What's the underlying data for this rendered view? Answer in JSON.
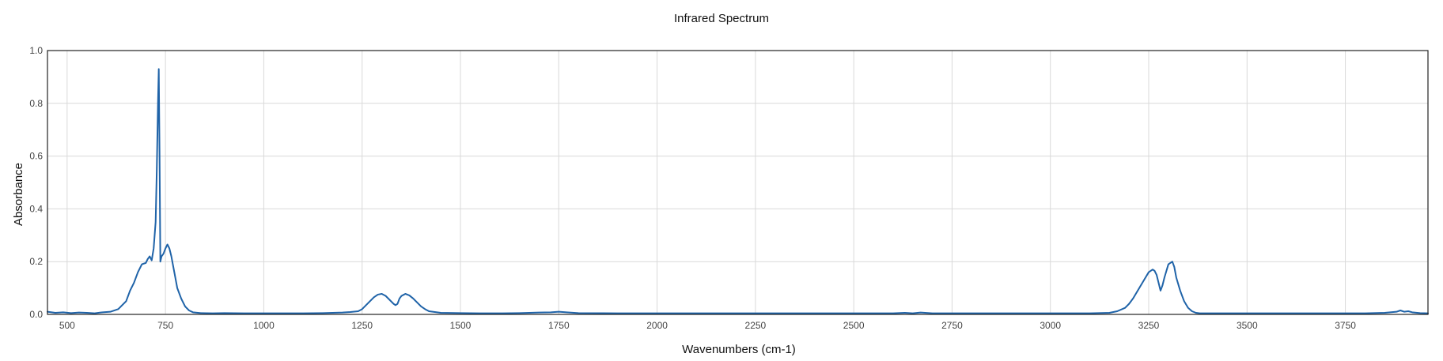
{
  "chart_data": {
    "type": "line",
    "title": "Infrared Spectrum",
    "xlabel": "Wavenumbers (cm-1)",
    "ylabel": "Absorbance",
    "xlim": [
      450,
      3960
    ],
    "ylim": [
      0,
      1
    ],
    "x_ticks": [
      500,
      750,
      1000,
      1250,
      1500,
      1750,
      2000,
      2250,
      2500,
      2750,
      3000,
      3250,
      3500,
      3750
    ],
    "y_ticks": [
      0.0,
      0.2,
      0.4,
      0.6,
      0.8,
      1.0
    ],
    "x_tick_labels": [
      "500",
      "750",
      "1000",
      "1250",
      "1500",
      "1750",
      "2000",
      "2250",
      "2500",
      "2750",
      "3000",
      "3250",
      "3500",
      "3750"
    ],
    "y_tick_labels": [
      "0.0",
      "0.2",
      "0.4",
      "0.6",
      "0.8",
      "1.0"
    ],
    "grid": true,
    "legend": "none",
    "colors": {
      "line": "#1f63a8",
      "grid": "#d9d9d9",
      "frame": "#222222"
    },
    "series": [
      {
        "x": [
          450,
          470,
          490,
          510,
          530,
          550,
          570,
          590,
          610,
          630,
          650,
          660,
          670,
          680,
          690,
          700,
          705,
          710,
          715,
          720,
          725,
          728,
          731,
          733,
          735,
          737,
          740,
          745,
          750,
          755,
          760,
          765,
          770,
          775,
          780,
          790,
          800,
          810,
          820,
          840,
          870,
          900,
          950,
          1000,
          1050,
          1100,
          1150,
          1200,
          1220,
          1240,
          1250,
          1260,
          1270,
          1280,
          1290,
          1300,
          1310,
          1320,
          1330,
          1335,
          1340,
          1345,
          1350,
          1360,
          1370,
          1380,
          1390,
          1400,
          1410,
          1420,
          1450,
          1500,
          1550,
          1600,
          1650,
          1700,
          1730,
          1750,
          1770,
          1800,
          1900,
          2000,
          2100,
          2200,
          2300,
          2400,
          2500,
          2600,
          2630,
          2650,
          2670,
          2700,
          2800,
          2900,
          3000,
          3100,
          3150,
          3170,
          3190,
          3200,
          3210,
          3220,
          3230,
          3240,
          3250,
          3260,
          3265,
          3270,
          3280,
          3285,
          3290,
          3300,
          3310,
          3315,
          3320,
          3330,
          3340,
          3350,
          3360,
          3370,
          3380,
          3390,
          3400,
          3450,
          3500,
          3600,
          3700,
          3800,
          3850,
          3880,
          3890,
          3900,
          3910,
          3920,
          3940,
          3960
        ],
        "y": [
          0.01,
          0.006,
          0.008,
          0.005,
          0.007,
          0.006,
          0.004,
          0.008,
          0.01,
          0.02,
          0.05,
          0.09,
          0.12,
          0.16,
          0.19,
          0.195,
          0.21,
          0.22,
          0.205,
          0.25,
          0.35,
          0.55,
          0.8,
          0.93,
          0.6,
          0.2,
          0.22,
          0.23,
          0.25,
          0.265,
          0.25,
          0.22,
          0.18,
          0.14,
          0.1,
          0.06,
          0.03,
          0.015,
          0.008,
          0.005,
          0.004,
          0.005,
          0.004,
          0.004,
          0.004,
          0.004,
          0.005,
          0.007,
          0.009,
          0.012,
          0.02,
          0.035,
          0.05,
          0.065,
          0.075,
          0.078,
          0.07,
          0.055,
          0.04,
          0.035,
          0.04,
          0.06,
          0.07,
          0.078,
          0.072,
          0.06,
          0.045,
          0.03,
          0.02,
          0.012,
          0.006,
          0.005,
          0.004,
          0.004,
          0.005,
          0.007,
          0.008,
          0.01,
          0.008,
          0.005,
          0.004,
          0.004,
          0.004,
          0.004,
          0.004,
          0.004,
          0.004,
          0.004,
          0.006,
          0.004,
          0.007,
          0.004,
          0.004,
          0.004,
          0.004,
          0.004,
          0.006,
          0.012,
          0.025,
          0.04,
          0.06,
          0.085,
          0.11,
          0.135,
          0.16,
          0.17,
          0.165,
          0.15,
          0.09,
          0.11,
          0.14,
          0.19,
          0.2,
          0.18,
          0.14,
          0.09,
          0.05,
          0.025,
          0.012,
          0.006,
          0.004,
          0.004,
          0.004,
          0.004,
          0.004,
          0.004,
          0.004,
          0.004,
          0.006,
          0.01,
          0.015,
          0.01,
          0.012,
          0.008,
          0.005,
          0.004
        ]
      }
    ]
  }
}
